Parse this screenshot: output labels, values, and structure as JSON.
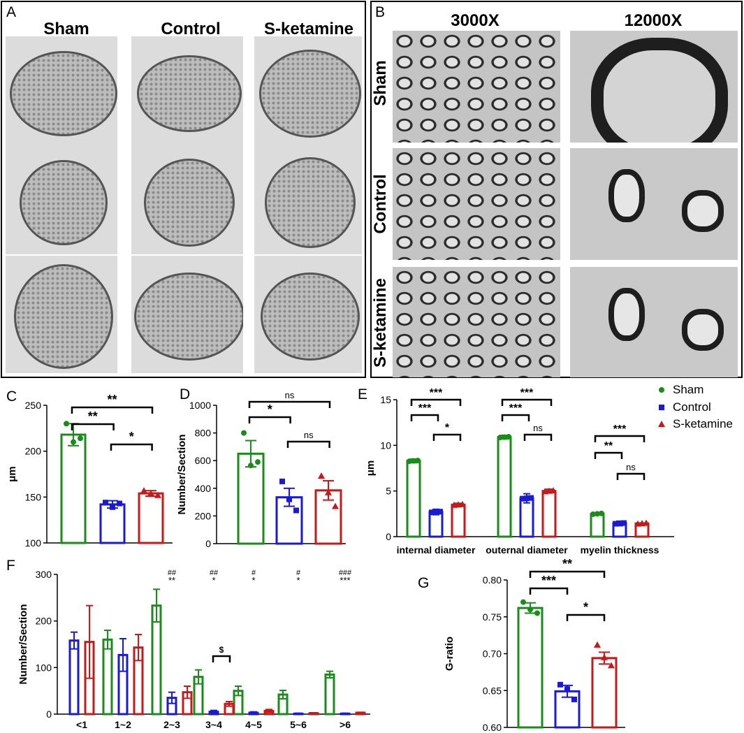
{
  "panels": {
    "A": {
      "letter": "A",
      "columns": [
        "Sham",
        "Control",
        "S-ketamine"
      ]
    },
    "B": {
      "letter": "B",
      "columns": [
        "3000X",
        "12000X"
      ],
      "rows": [
        "Sham",
        "Control",
        "S-ketamine"
      ]
    }
  },
  "colors": {
    "Sham": "#1a8c1a",
    "Control": "#1a1ad6",
    "S-ketamine": "#c41a1a"
  },
  "chart_data": [
    {
      "id": "C",
      "letter": "C",
      "type": "bar",
      "categories": [
        "Sham",
        "Control",
        "S-ketamine"
      ],
      "values": [
        218,
        142,
        154
      ],
      "errors": [
        12,
        4,
        3
      ],
      "points": [
        [
          230,
          210,
          214
        ],
        [
          144,
          139,
          143
        ],
        [
          157,
          154,
          152
        ]
      ],
      "ylabel": "μm",
      "ylim": [
        100,
        250
      ],
      "yticks": [
        100,
        150,
        200,
        250
      ],
      "significance": [
        {
          "from": 0,
          "to": 2,
          "label": "**"
        },
        {
          "from": 0,
          "to": 1,
          "label": "**"
        },
        {
          "from": 1,
          "to": 2,
          "label": "*"
        }
      ]
    },
    {
      "id": "D",
      "letter": "D",
      "type": "bar",
      "categories": [
        "Sham",
        "Control",
        "S-ketamine"
      ],
      "values": [
        650,
        335,
        385
      ],
      "errors": [
        95,
        65,
        70
      ],
      "points": [
        [
          800,
          565,
          590
        ],
        [
          450,
          320,
          240
        ],
        [
          490,
          370,
          270
        ]
      ],
      "ylabel": "Number/Section",
      "ylim": [
        0,
        1000
      ],
      "yticks": [
        0,
        200,
        400,
        600,
        800,
        1000
      ],
      "significance": [
        {
          "from": 0,
          "to": 2,
          "label": "ns"
        },
        {
          "from": 0,
          "to": 1,
          "label": "*"
        },
        {
          "from": 1,
          "to": 2,
          "label": "ns"
        }
      ]
    },
    {
      "id": "E",
      "letter": "E",
      "type": "bar",
      "categories": [
        "internal diameter",
        "outernal diameter",
        "myelin thickness"
      ],
      "series": [
        {
          "name": "Sham",
          "values": [
            8.3,
            10.9,
            2.5
          ],
          "errors": [
            0.2,
            0.2,
            0.05
          ]
        },
        {
          "name": "Control",
          "values": [
            2.7,
            4.2,
            1.45
          ],
          "errors": [
            0.3,
            0.5,
            0.25
          ]
        },
        {
          "name": "S-ketamine",
          "values": [
            3.5,
            5.0,
            1.45
          ],
          "errors": [
            0.15,
            0.2,
            0.05
          ]
        }
      ],
      "ylabel": "μm",
      "ylim": [
        0,
        15
      ],
      "yticks": [
        0,
        5,
        10,
        15
      ],
      "legend": "top-right",
      "significance": [
        {
          "group": 0,
          "from": 0,
          "to": 2,
          "label": "***"
        },
        {
          "group": 0,
          "from": 0,
          "to": 1,
          "label": "***"
        },
        {
          "group": 0,
          "from": 1,
          "to": 2,
          "label": "*"
        },
        {
          "group": 1,
          "from": 0,
          "to": 2,
          "label": "***"
        },
        {
          "group": 1,
          "from": 0,
          "to": 1,
          "label": "***"
        },
        {
          "group": 1,
          "from": 1,
          "to": 2,
          "label": "ns"
        },
        {
          "group": 2,
          "from": 0,
          "to": 2,
          "label": "***"
        },
        {
          "group": 2,
          "from": 0,
          "to": 1,
          "label": "**"
        },
        {
          "group": 2,
          "from": 1,
          "to": 2,
          "label": "ns"
        }
      ]
    },
    {
      "id": "F",
      "letter": "F",
      "type": "bar",
      "categories": [
        "<1",
        "1~2",
        "2~3",
        "3~4",
        "4~5",
        "5~6",
        ">6"
      ],
      "series": [
        {
          "name": "Sham",
          "values": [
            null,
            160,
            233,
            80,
            50,
            42,
            85
          ],
          "errors": [
            null,
            20,
            35,
            15,
            10,
            9,
            7
          ]
        },
        {
          "name": "Control",
          "values": [
            158,
            127,
            35,
            5,
            3,
            1,
            1
          ],
          "errors": [
            18,
            35,
            12,
            3,
            2,
            1,
            1
          ]
        },
        {
          "name": "S-ketamine",
          "values": [
            155,
            143,
            47,
            22,
            7,
            2,
            3
          ],
          "errors": [
            78,
            28,
            13,
            5,
            3,
            1,
            1
          ]
        }
      ],
      "ylabel": "Number/Section",
      "ylim": [
        0,
        300
      ],
      "yticks": [
        0,
        100,
        200,
        300
      ],
      "top_marks": [
        {
          "category": 2,
          "line1": "##",
          "line2": "**"
        },
        {
          "category": 3,
          "line1": "##",
          "line2": "*"
        },
        {
          "category": 4,
          "line1": "#",
          "line2": "*"
        },
        {
          "category": 5,
          "line1": "#",
          "line2": "*"
        },
        {
          "category": 6,
          "line1": "###",
          "line2": "***"
        }
      ],
      "significance": [
        {
          "group": 3,
          "from": 1,
          "to": 2,
          "label": "$"
        }
      ]
    },
    {
      "id": "G",
      "letter": "G",
      "type": "bar",
      "categories": [
        "Sham",
        "Control",
        "S-ketamine"
      ],
      "values": [
        0.762,
        0.649,
        0.694
      ],
      "errors": [
        0.007,
        0.008,
        0.008
      ],
      "points": [
        [
          0.77,
          0.76,
          0.755
        ],
        [
          0.658,
          0.652,
          0.638
        ],
        [
          0.712,
          0.695,
          0.684
        ]
      ],
      "ylabel": "G-ratio",
      "ylim": [
        0.6,
        0.8
      ],
      "yticks": [
        0.6,
        0.65,
        0.7,
        0.75,
        0.8
      ],
      "significance": [
        {
          "from": 0,
          "to": 2,
          "label": "**"
        },
        {
          "from": 0,
          "to": 1,
          "label": "***"
        },
        {
          "from": 1,
          "to": 2,
          "label": "*"
        }
      ]
    }
  ]
}
